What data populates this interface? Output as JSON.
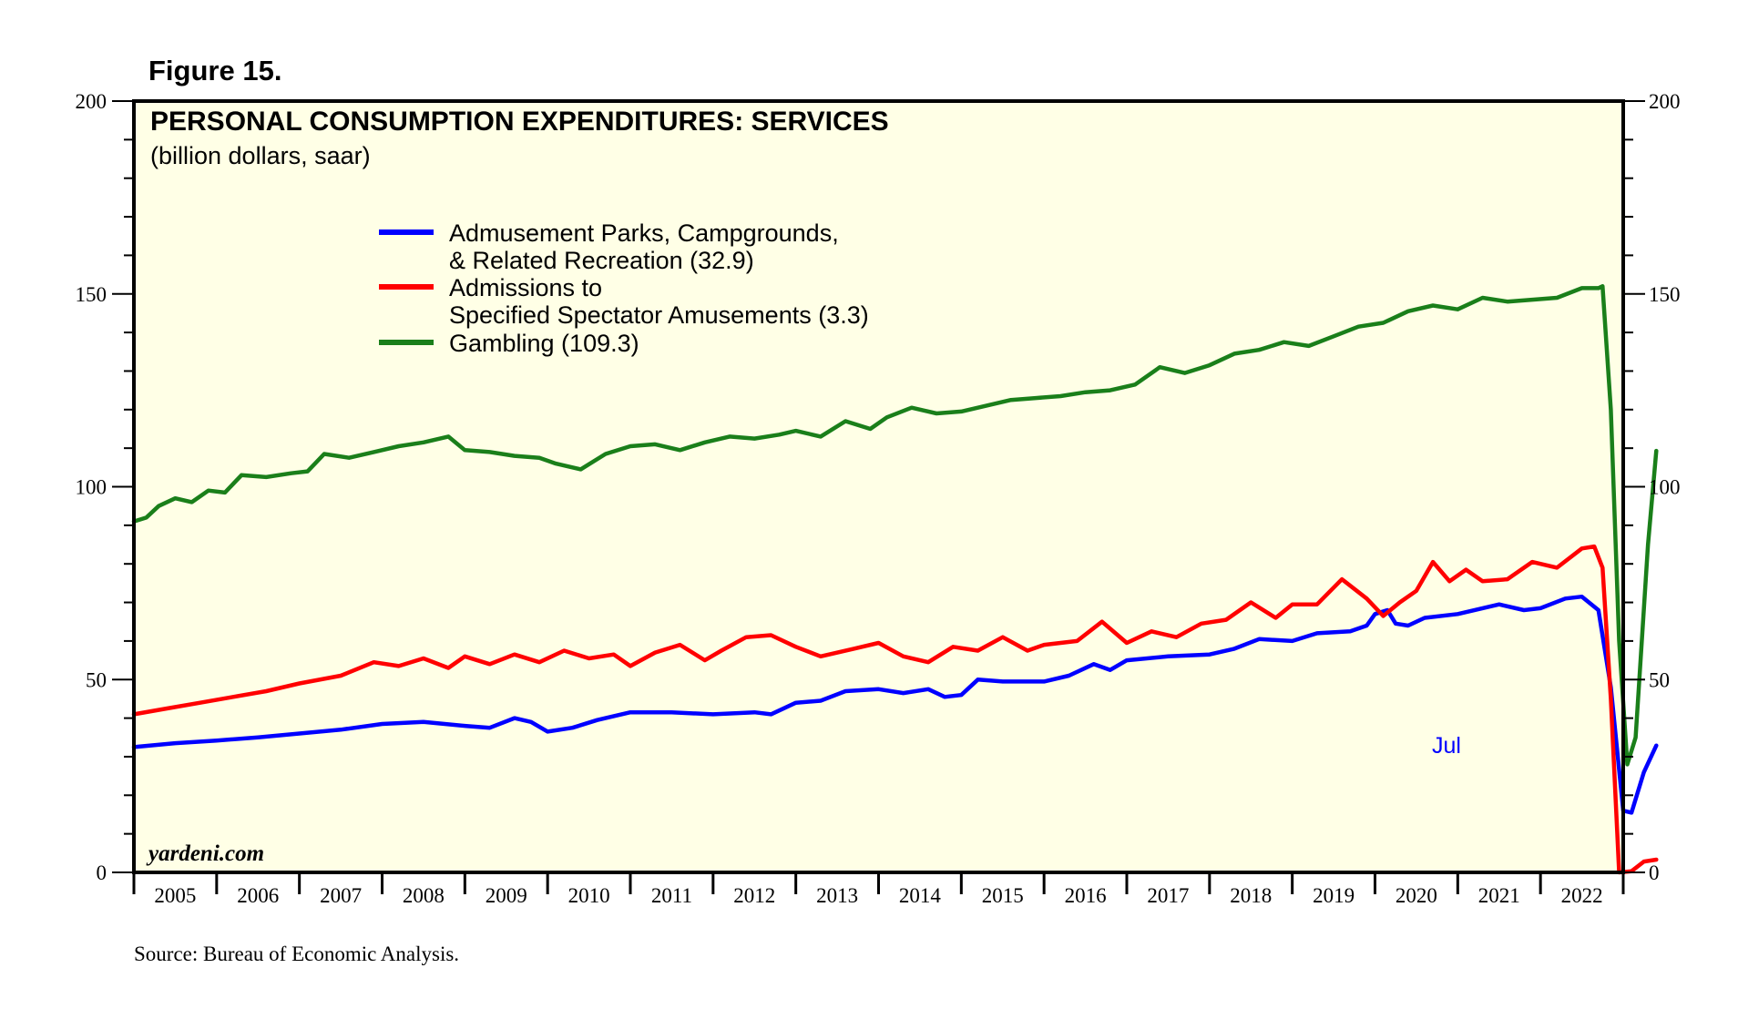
{
  "figure_label": "Figure 15.",
  "source": "Source: Bureau of Economic Analysis.",
  "watermark": "yardeni.com",
  "colors": {
    "background": "#ffffe6",
    "series_blue": "#0000ff",
    "series_red": "#ff0000",
    "series_green": "#1a7f1a"
  },
  "chart_data": {
    "type": "line",
    "title": "PERSONAL CONSUMPTION EXPENDITURES: SERVICES",
    "subtitle": "(billion dollars, saar)",
    "xlabel": "",
    "ylabel": "",
    "ylim": [
      0,
      200
    ],
    "y_ticks": [
      "0",
      "50",
      "100",
      "150",
      "200"
    ],
    "x_range": [
      2005.0,
      2023.0
    ],
    "x_tick_labels": [
      "2005",
      "2006",
      "2007",
      "2008",
      "2009",
      "2010",
      "2011",
      "2012",
      "2013",
      "2014",
      "2015",
      "2016",
      "2017",
      "2018",
      "2019",
      "2020",
      "2021",
      "2022"
    ],
    "annotation": "Jul",
    "legend": [
      {
        "line1": "Admusement Parks, Campgrounds,",
        "line2": "& Related Recreation (32.9)"
      },
      {
        "line1": "Admissions to",
        "line2": "Specified Spectator Amusements (3.3)"
      },
      {
        "line1": "Gambling (109.3)",
        "line2": ""
      }
    ],
    "series": [
      {
        "name": "Admusement Parks, Campgrounds, & Related Recreation",
        "color": "#0000ff",
        "points": [
          [
            2005.0,
            32.5
          ],
          [
            2005.5,
            33.5
          ],
          [
            2006.0,
            34.2
          ],
          [
            2006.5,
            35.0
          ],
          [
            2007.0,
            36.0
          ],
          [
            2007.5,
            37.0
          ],
          [
            2008.0,
            38.5
          ],
          [
            2008.5,
            39.0
          ],
          [
            2009.0,
            38.0
          ],
          [
            2009.3,
            37.5
          ],
          [
            2009.6,
            40.0
          ],
          [
            2009.8,
            39.0
          ],
          [
            2010.0,
            36.5
          ],
          [
            2010.3,
            37.5
          ],
          [
            2010.6,
            39.5
          ],
          [
            2011.0,
            41.5
          ],
          [
            2011.5,
            41.5
          ],
          [
            2012.0,
            41.0
          ],
          [
            2012.5,
            41.5
          ],
          [
            2012.7,
            41.0
          ],
          [
            2013.0,
            44.0
          ],
          [
            2013.3,
            44.5
          ],
          [
            2013.6,
            47.0
          ],
          [
            2014.0,
            47.5
          ],
          [
            2014.3,
            46.5
          ],
          [
            2014.6,
            47.5
          ],
          [
            2014.8,
            45.5
          ],
          [
            2015.0,
            46.0
          ],
          [
            2015.2,
            50.0
          ],
          [
            2015.5,
            49.5
          ],
          [
            2016.0,
            49.5
          ],
          [
            2016.3,
            51.0
          ],
          [
            2016.6,
            54.0
          ],
          [
            2016.8,
            52.5
          ],
          [
            2017.0,
            55.0
          ],
          [
            2017.5,
            56.0
          ],
          [
            2018.0,
            56.5
          ],
          [
            2018.3,
            58.0
          ],
          [
            2018.6,
            60.5
          ],
          [
            2019.0,
            60.0
          ],
          [
            2019.3,
            62.0
          ],
          [
            2019.7,
            62.5
          ],
          [
            2019.9,
            64.0
          ],
          [
            2020.0,
            67.0
          ],
          [
            2020.15,
            68.0
          ],
          [
            2020.25,
            64.5
          ],
          [
            2020.4,
            64.0
          ],
          [
            2020.6,
            66.0
          ],
          [
            2021.0,
            67.0
          ],
          [
            2021.3,
            68.5
          ],
          [
            2021.5,
            69.5
          ],
          [
            2021.8,
            68.0
          ],
          [
            2022.0,
            68.5
          ],
          [
            2022.3,
            71.0
          ],
          [
            2022.5,
            71.5
          ],
          [
            2022.7,
            68.0
          ],
          [
            2022.85,
            48.0
          ],
          [
            2023.0,
            16.0
          ],
          [
            2023.1,
            15.5
          ],
          [
            2023.25,
            26.0
          ],
          [
            2023.4,
            32.9
          ]
        ]
      },
      {
        "name": "Admissions to Specified Spectator Amusements",
        "color": "#ff0000",
        "points": [
          [
            2005.0,
            41.0
          ],
          [
            2005.4,
            42.5
          ],
          [
            2005.8,
            44.0
          ],
          [
            2006.2,
            45.5
          ],
          [
            2006.6,
            47.0
          ],
          [
            2007.0,
            49.0
          ],
          [
            2007.5,
            51.0
          ],
          [
            2007.9,
            54.5
          ],
          [
            2008.2,
            53.5
          ],
          [
            2008.5,
            55.5
          ],
          [
            2008.8,
            53.0
          ],
          [
            2009.0,
            56.0
          ],
          [
            2009.3,
            54.0
          ],
          [
            2009.6,
            56.5
          ],
          [
            2009.9,
            54.5
          ],
          [
            2010.2,
            57.5
          ],
          [
            2010.5,
            55.5
          ],
          [
            2010.8,
            56.5
          ],
          [
            2011.0,
            53.5
          ],
          [
            2011.3,
            57.0
          ],
          [
            2011.6,
            59.0
          ],
          [
            2011.9,
            55.0
          ],
          [
            2012.1,
            57.5
          ],
          [
            2012.4,
            61.0
          ],
          [
            2012.7,
            61.5
          ],
          [
            2013.0,
            58.5
          ],
          [
            2013.3,
            56.0
          ],
          [
            2013.7,
            58.0
          ],
          [
            2014.0,
            59.5
          ],
          [
            2014.3,
            56.0
          ],
          [
            2014.6,
            54.5
          ],
          [
            2014.9,
            58.5
          ],
          [
            2015.2,
            57.5
          ],
          [
            2015.5,
            61.0
          ],
          [
            2015.8,
            57.5
          ],
          [
            2016.0,
            59.0
          ],
          [
            2016.4,
            60.0
          ],
          [
            2016.7,
            65.0
          ],
          [
            2017.0,
            59.5
          ],
          [
            2017.3,
            62.5
          ],
          [
            2017.6,
            61.0
          ],
          [
            2017.9,
            64.5
          ],
          [
            2018.2,
            65.5
          ],
          [
            2018.5,
            70.0
          ],
          [
            2018.8,
            66.0
          ],
          [
            2019.0,
            69.5
          ],
          [
            2019.3,
            69.5
          ],
          [
            2019.6,
            76.0
          ],
          [
            2019.9,
            71.0
          ],
          [
            2020.1,
            66.5
          ],
          [
            2020.3,
            70.0
          ],
          [
            2020.5,
            73.0
          ],
          [
            2020.7,
            80.5
          ],
          [
            2020.9,
            75.5
          ],
          [
            2021.1,
            78.5
          ],
          [
            2021.3,
            75.5
          ],
          [
            2021.6,
            76.0
          ],
          [
            2021.9,
            80.5
          ],
          [
            2022.2,
            79.0
          ],
          [
            2022.5,
            84.0
          ],
          [
            2022.65,
            84.5
          ],
          [
            2022.75,
            79.0
          ],
          [
            2022.85,
            45.0
          ],
          [
            2022.95,
            0.0
          ],
          [
            2023.1,
            0.3
          ],
          [
            2023.25,
            2.8
          ],
          [
            2023.4,
            3.3
          ]
        ]
      },
      {
        "name": "Gambling",
        "color": "#1a7f1a",
        "points": [
          [
            2005.0,
            91.0
          ],
          [
            2005.15,
            92.0
          ],
          [
            2005.3,
            95.0
          ],
          [
            2005.5,
            97.0
          ],
          [
            2005.7,
            96.0
          ],
          [
            2005.9,
            99.0
          ],
          [
            2006.1,
            98.5
          ],
          [
            2006.3,
            103.0
          ],
          [
            2006.6,
            102.5
          ],
          [
            2006.9,
            103.5
          ],
          [
            2007.1,
            104.0
          ],
          [
            2007.3,
            108.5
          ],
          [
            2007.6,
            107.5
          ],
          [
            2007.9,
            109.0
          ],
          [
            2008.2,
            110.5
          ],
          [
            2008.5,
            111.5
          ],
          [
            2008.8,
            113.0
          ],
          [
            2009.0,
            109.5
          ],
          [
            2009.3,
            109.0
          ],
          [
            2009.6,
            108.0
          ],
          [
            2009.9,
            107.5
          ],
          [
            2010.1,
            106.0
          ],
          [
            2010.4,
            104.5
          ],
          [
            2010.7,
            108.5
          ],
          [
            2011.0,
            110.5
          ],
          [
            2011.3,
            111.0
          ],
          [
            2011.6,
            109.5
          ],
          [
            2011.9,
            111.5
          ],
          [
            2012.2,
            113.0
          ],
          [
            2012.5,
            112.5
          ],
          [
            2012.8,
            113.5
          ],
          [
            2013.0,
            114.5
          ],
          [
            2013.3,
            113.0
          ],
          [
            2013.6,
            117.0
          ],
          [
            2013.9,
            115.0
          ],
          [
            2014.1,
            118.0
          ],
          [
            2014.4,
            120.5
          ],
          [
            2014.7,
            119.0
          ],
          [
            2015.0,
            119.5
          ],
          [
            2015.3,
            121.0
          ],
          [
            2015.6,
            122.5
          ],
          [
            2015.9,
            123.0
          ],
          [
            2016.2,
            123.5
          ],
          [
            2016.5,
            124.5
          ],
          [
            2016.8,
            125.0
          ],
          [
            2017.1,
            126.5
          ],
          [
            2017.4,
            131.0
          ],
          [
            2017.7,
            129.5
          ],
          [
            2018.0,
            131.5
          ],
          [
            2018.3,
            134.5
          ],
          [
            2018.6,
            135.5
          ],
          [
            2018.9,
            137.5
          ],
          [
            2019.2,
            136.5
          ],
          [
            2019.5,
            139.0
          ],
          [
            2019.8,
            141.5
          ],
          [
            2020.1,
            142.5
          ],
          [
            2020.4,
            145.5
          ],
          [
            2020.7,
            147.0
          ],
          [
            2021.0,
            146.0
          ],
          [
            2021.3,
            149.0
          ],
          [
            2021.6,
            148.0
          ],
          [
            2021.9,
            148.5
          ],
          [
            2022.2,
            149.0
          ],
          [
            2022.5,
            151.5
          ],
          [
            2022.7,
            151.5
          ],
          [
            2022.75,
            152.0
          ],
          [
            2022.85,
            120.0
          ],
          [
            2022.95,
            60.0
          ],
          [
            2023.05,
            28.0
          ],
          [
            2023.15,
            35.0
          ],
          [
            2023.3,
            85.0
          ],
          [
            2023.4,
            109.3
          ]
        ]
      }
    ]
  }
}
